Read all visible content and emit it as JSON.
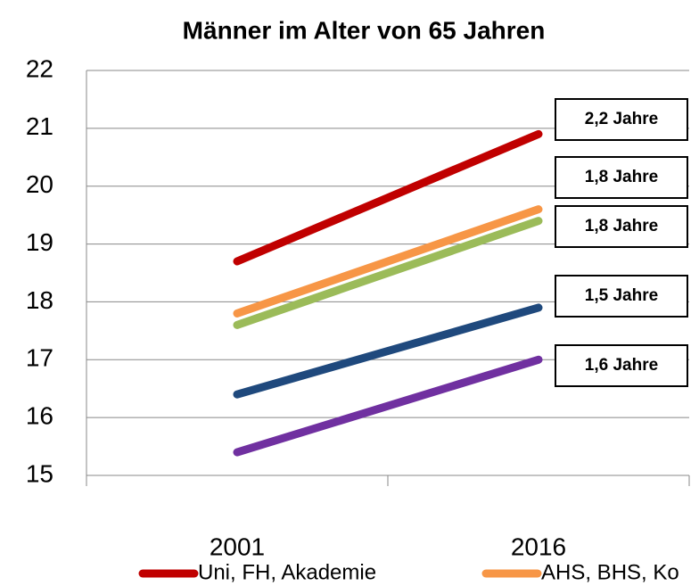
{
  "chart_data": {
    "type": "line",
    "title": "Männer im Alter von 65 Jahren",
    "categories": [
      "2001",
      "2016"
    ],
    "series": [
      {
        "name": "Uni, FH, Akademie",
        "color": "#c00000",
        "values": [
          18.7,
          20.9
        ],
        "annotation": "2,2 Jahre"
      },
      {
        "name": "AHS, BHS, Ko",
        "color": "#f79646",
        "values": [
          17.8,
          19.6
        ],
        "annotation": "1,8 Jahre"
      },
      {
        "color": "#9bbb59",
        "values": [
          17.6,
          19.4
        ],
        "annotation": "1,8 Jahre"
      },
      {
        "color": "#1f497d",
        "values": [
          16.4,
          17.9
        ],
        "annotation": "1,5 Jahre"
      },
      {
        "color": "#7030a0",
        "values": [
          15.4,
          17.0
        ],
        "annotation": "1,6 Jahre"
      }
    ],
    "ylim": [
      15,
      22
    ],
    "yticks": [
      15,
      16,
      17,
      18,
      19,
      20,
      21,
      22
    ],
    "grid": true
  }
}
